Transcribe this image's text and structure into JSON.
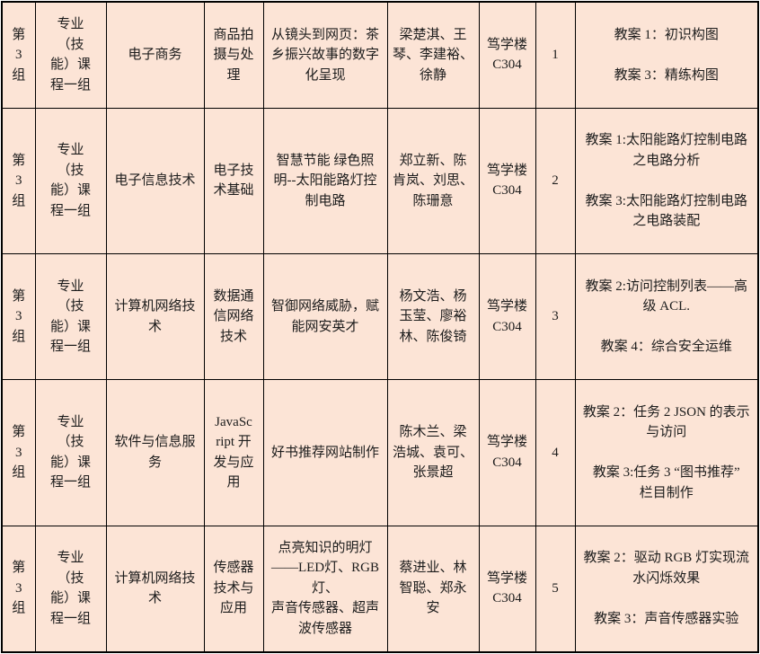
{
  "colors": {
    "cell_bg": "#fce4d6",
    "border": "#000000",
    "text": "#1c1c1c"
  },
  "table": {
    "rows": [
      {
        "group": "第\n3\n组",
        "category": "专业\n（技\n能）课\n程一组",
        "major": "电子商务",
        "course": "商品拍\n摄与处\n理",
        "topic": "从镜头到网页：茶\n乡振兴故事的数字\n化呈现",
        "teachers": "梁楚淇、王\n琴、李建裕、\n徐静",
        "location": "笃学楼\nC304",
        "seq": "1",
        "plans": [
          "教案 1：初识构图",
          "教案 3：精练构图"
        ]
      },
      {
        "group": "第\n3\n组",
        "category": "专业\n（技\n能）课\n程一组",
        "major": "电子信息技术",
        "course": "电子技\n术基础",
        "topic": "智慧节能 绿色照\n明--太阳能路灯控\n制电路",
        "teachers": "郑立新、陈\n肯岚、刘思、\n陈珊意",
        "location": "笃学楼\nC304",
        "seq": "2",
        "plans": [
          "教案 1:太阳能路灯控制电路\n之电路分析",
          "教案 3:太阳能路灯控制电路\n之电路装配"
        ]
      },
      {
        "group": "第\n3\n组",
        "category": "专业\n（技\n能）课\n程一组",
        "major": "计算机网络技\n术",
        "course": "数据通\n信网络\n技术",
        "topic": "智御网络威胁，赋\n能网安英才",
        "teachers": "杨文浩、杨\n玉莹、廖裕\n林、陈俊锜",
        "location": "笃学楼\nC304",
        "seq": "3",
        "plans": [
          "教案 2:访问控制列表——高\n级 ACL.",
          "教案 4：综合安全运维"
        ]
      },
      {
        "group": "第\n3\n组",
        "category": "专业\n（技\n能）课\n程一组",
        "major": "软件与信息服\n务",
        "course": "JavaSc\nript 开\n发与应\n用",
        "topic": "好书推荐网站制作",
        "teachers": "陈木兰、梁\n浩城、袁可、\n张景超",
        "location": "笃学楼\nC304",
        "seq": "4",
        "plans": [
          "教案 2：任务 2 JSON 的表示\n与访问",
          "教案 3:任务 3 “图书推荐”\n栏目制作"
        ]
      },
      {
        "group": "第\n3\n组",
        "category": "专业\n（技\n能）课\n程一组",
        "major": "计算机网络技\n术",
        "course": "传感器\n技术与\n应用",
        "topic": "点亮知识的明灯\n——LED灯、RGB灯、\n声音传感器、超声\n波传感器",
        "teachers": "蔡进业、林\n智聪、郑永\n安",
        "location": "笃学楼\nC304",
        "seq": "5",
        "plans": [
          "教案 2：驱动 RGB 灯实现流\n水闪烁效果",
          "教案 3：声音传感器实验"
        ]
      }
    ]
  }
}
